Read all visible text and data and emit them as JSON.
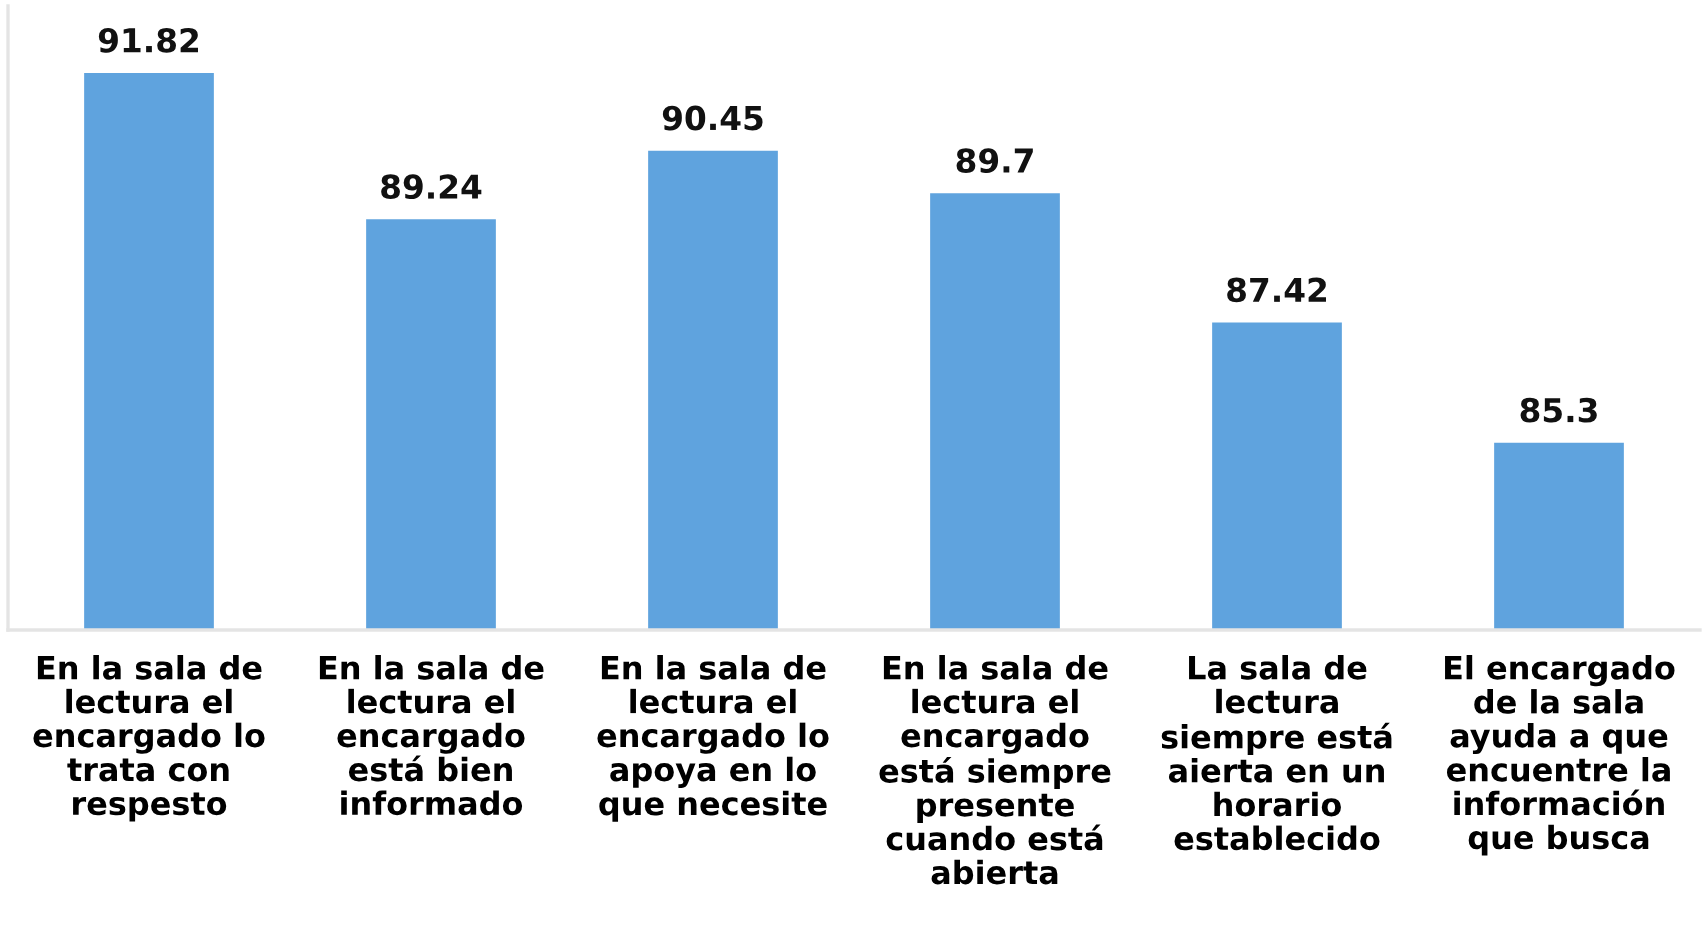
{
  "chart_data": {
    "type": "bar",
    "categories": [
      "En la sala de\nlectura el\nencargado lo\ntrata con\nrespesto",
      "En la sala de\nlectura el\nencargado\nestá bien\ninformado",
      "En la sala de\nlectura el\nencargado lo\napoya en lo\nque necesite",
      "En la sala de\nlectura el\nencargado\nestá siempre\npresente\ncuando está\nabierta",
      "La sala de\nlectura\nsiempre está\naierta en un\nhorario\nestablecido",
      "El encargado\nde la sala\nayuda a que\nencuentre la\ninformación\nque busca"
    ],
    "values": [
      91.82,
      89.24,
      90.45,
      89.7,
      87.42,
      85.3
    ],
    "color": "#5fa3de",
    "ylim": [
      82,
      93
    ],
    "data_labels": true,
    "tick_labels": "x"
  }
}
